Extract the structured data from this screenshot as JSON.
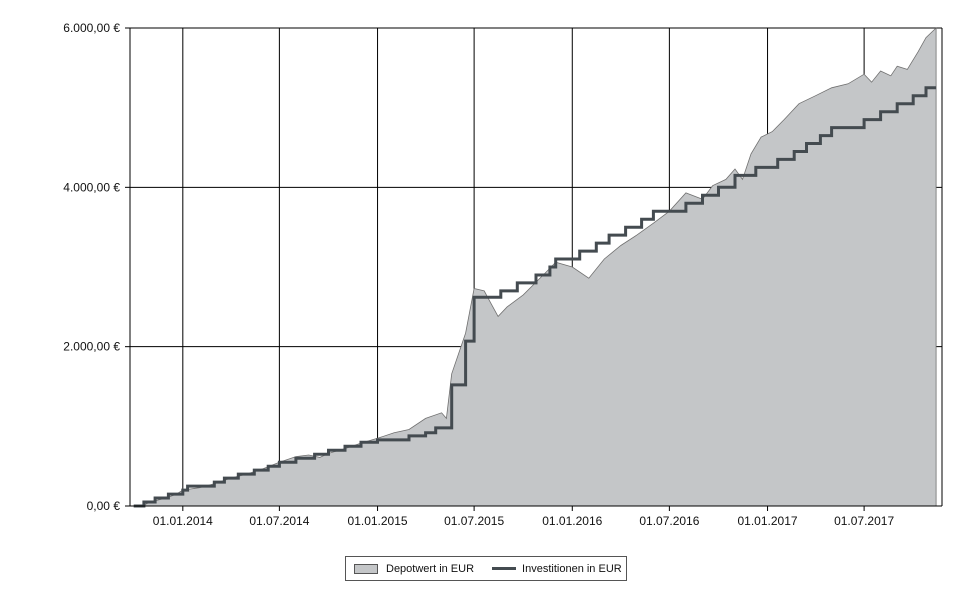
{
  "chart_data": {
    "type": "area",
    "xlabel": "",
    "ylabel": "",
    "ylim": [
      0,
      6000
    ],
    "xlim": [
      "2013-09-24",
      "2017-11-24"
    ],
    "grid": true,
    "legend_position": "bottom-center",
    "y_ticks": [
      {
        "value": 0,
        "label": "0,00 €"
      },
      {
        "value": 2000,
        "label": "2.000,00 €"
      },
      {
        "value": 4000,
        "label": "4.000,00 €"
      },
      {
        "value": 6000,
        "label": "6.000,00 €"
      }
    ],
    "x_ticks": [
      {
        "date": "2014-01-01",
        "label": "01.01.2014"
      },
      {
        "date": "2014-07-01",
        "label": "01.07.2014"
      },
      {
        "date": "2015-01-01",
        "label": "01.01.2015"
      },
      {
        "date": "2015-07-01",
        "label": "01.07.2015"
      },
      {
        "date": "2016-01-01",
        "label": "01.01.2016"
      },
      {
        "date": "2016-07-01",
        "label": "01.07.2016"
      },
      {
        "date": "2017-01-01",
        "label": "01.01.2017"
      },
      {
        "date": "2017-07-01",
        "label": "01.07.2017"
      }
    ],
    "colors": {
      "depotwert_fill": "#c4c6c8",
      "depotwert_stroke": "#707070",
      "investitionen": "#444b50",
      "grid": "#000000"
    },
    "series": [
      {
        "name": "Depotwert in EUR",
        "kind": "area",
        "points": [
          [
            "2013-10-16",
            0
          ],
          [
            "2013-11-01",
            50
          ],
          [
            "2013-12-01",
            100
          ],
          [
            "2013-12-20",
            150
          ],
          [
            "2014-01-01",
            200
          ],
          [
            "2014-02-01",
            230
          ],
          [
            "2014-03-01",
            280
          ],
          [
            "2014-04-01",
            350
          ],
          [
            "2014-05-01",
            400
          ],
          [
            "2014-06-01",
            470
          ],
          [
            "2014-07-01",
            550
          ],
          [
            "2014-08-01",
            620
          ],
          [
            "2014-08-25",
            640
          ],
          [
            "2014-09-15",
            610
          ],
          [
            "2014-10-01",
            660
          ],
          [
            "2014-11-01",
            720
          ],
          [
            "2014-12-01",
            790
          ],
          [
            "2015-01-01",
            850
          ],
          [
            "2015-02-01",
            920
          ],
          [
            "2015-03-01",
            960
          ],
          [
            "2015-04-01",
            1100
          ],
          [
            "2015-05-01",
            1170
          ],
          [
            "2015-05-10",
            1100
          ],
          [
            "2015-05-20",
            1660
          ],
          [
            "2015-06-15",
            2170
          ],
          [
            "2015-07-01",
            2730
          ],
          [
            "2015-07-20",
            2700
          ],
          [
            "2015-08-01",
            2550
          ],
          [
            "2015-08-15",
            2380
          ],
          [
            "2015-09-01",
            2500
          ],
          [
            "2015-10-01",
            2650
          ],
          [
            "2015-11-15",
            2950
          ],
          [
            "2015-12-01",
            3060
          ],
          [
            "2016-01-01",
            3000
          ],
          [
            "2016-02-01",
            2860
          ],
          [
            "2016-03-01",
            3100
          ],
          [
            "2016-04-01",
            3270
          ],
          [
            "2016-05-01",
            3400
          ],
          [
            "2016-06-01",
            3550
          ],
          [
            "2016-07-01",
            3700
          ],
          [
            "2016-08-01",
            3930
          ],
          [
            "2016-09-01",
            3850
          ],
          [
            "2016-09-20",
            4020
          ],
          [
            "2016-10-15",
            4100
          ],
          [
            "2016-11-01",
            4230
          ],
          [
            "2016-11-15",
            4100
          ],
          [
            "2016-12-01",
            4420
          ],
          [
            "2016-12-20",
            4630
          ],
          [
            "2017-01-10",
            4700
          ],
          [
            "2017-02-01",
            4850
          ],
          [
            "2017-03-01",
            5050
          ],
          [
            "2017-04-01",
            5150
          ],
          [
            "2017-05-01",
            5250
          ],
          [
            "2017-06-01",
            5300
          ],
          [
            "2017-07-01",
            5420
          ],
          [
            "2017-07-15",
            5320
          ],
          [
            "2017-08-01",
            5460
          ],
          [
            "2017-08-20",
            5400
          ],
          [
            "2017-09-01",
            5520
          ],
          [
            "2017-09-20",
            5480
          ],
          [
            "2017-10-10",
            5700
          ],
          [
            "2017-10-25",
            5880
          ],
          [
            "2017-11-13",
            6000
          ]
        ]
      },
      {
        "name": "Investitionen in EUR",
        "kind": "step",
        "points": [
          [
            "2013-10-01",
            0
          ],
          [
            "2013-10-20",
            50
          ],
          [
            "2013-11-10",
            100
          ],
          [
            "2013-12-05",
            150
          ],
          [
            "2014-01-01",
            200
          ],
          [
            "2014-01-10",
            250
          ],
          [
            "2014-03-01",
            300
          ],
          [
            "2014-03-20",
            350
          ],
          [
            "2014-04-15",
            400
          ],
          [
            "2014-05-15",
            450
          ],
          [
            "2014-06-10",
            500
          ],
          [
            "2014-07-01",
            550
          ],
          [
            "2014-08-01",
            600
          ],
          [
            "2014-09-05",
            650
          ],
          [
            "2014-10-01",
            700
          ],
          [
            "2014-11-01",
            750
          ],
          [
            "2014-12-01",
            800
          ],
          [
            "2015-01-01",
            830
          ],
          [
            "2015-03-01",
            880
          ],
          [
            "2015-04-01",
            920
          ],
          [
            "2015-04-20",
            980
          ],
          [
            "2015-05-20",
            1520
          ],
          [
            "2015-06-15",
            2070
          ],
          [
            "2015-07-01",
            2620
          ],
          [
            "2015-08-20",
            2700
          ],
          [
            "2015-09-20",
            2800
          ],
          [
            "2015-10-25",
            2900
          ],
          [
            "2015-11-20",
            3000
          ],
          [
            "2015-12-01",
            3100
          ],
          [
            "2016-01-15",
            3200
          ],
          [
            "2016-02-15",
            3300
          ],
          [
            "2016-03-10",
            3400
          ],
          [
            "2016-04-10",
            3500
          ],
          [
            "2016-05-10",
            3600
          ],
          [
            "2016-06-01",
            3700
          ],
          [
            "2016-08-01",
            3800
          ],
          [
            "2016-09-01",
            3900
          ],
          [
            "2016-10-01",
            4000
          ],
          [
            "2016-11-01",
            4150
          ],
          [
            "2016-12-10",
            4250
          ],
          [
            "2017-01-20",
            4350
          ],
          [
            "2017-02-20",
            4450
          ],
          [
            "2017-03-15",
            4550
          ],
          [
            "2017-04-10",
            4650
          ],
          [
            "2017-05-01",
            4750
          ],
          [
            "2017-07-01",
            4850
          ],
          [
            "2017-08-01",
            4950
          ],
          [
            "2017-09-01",
            5050
          ],
          [
            "2017-10-01",
            5150
          ],
          [
            "2017-10-25",
            5250
          ],
          [
            "2017-11-13",
            5250
          ]
        ]
      }
    ]
  }
}
